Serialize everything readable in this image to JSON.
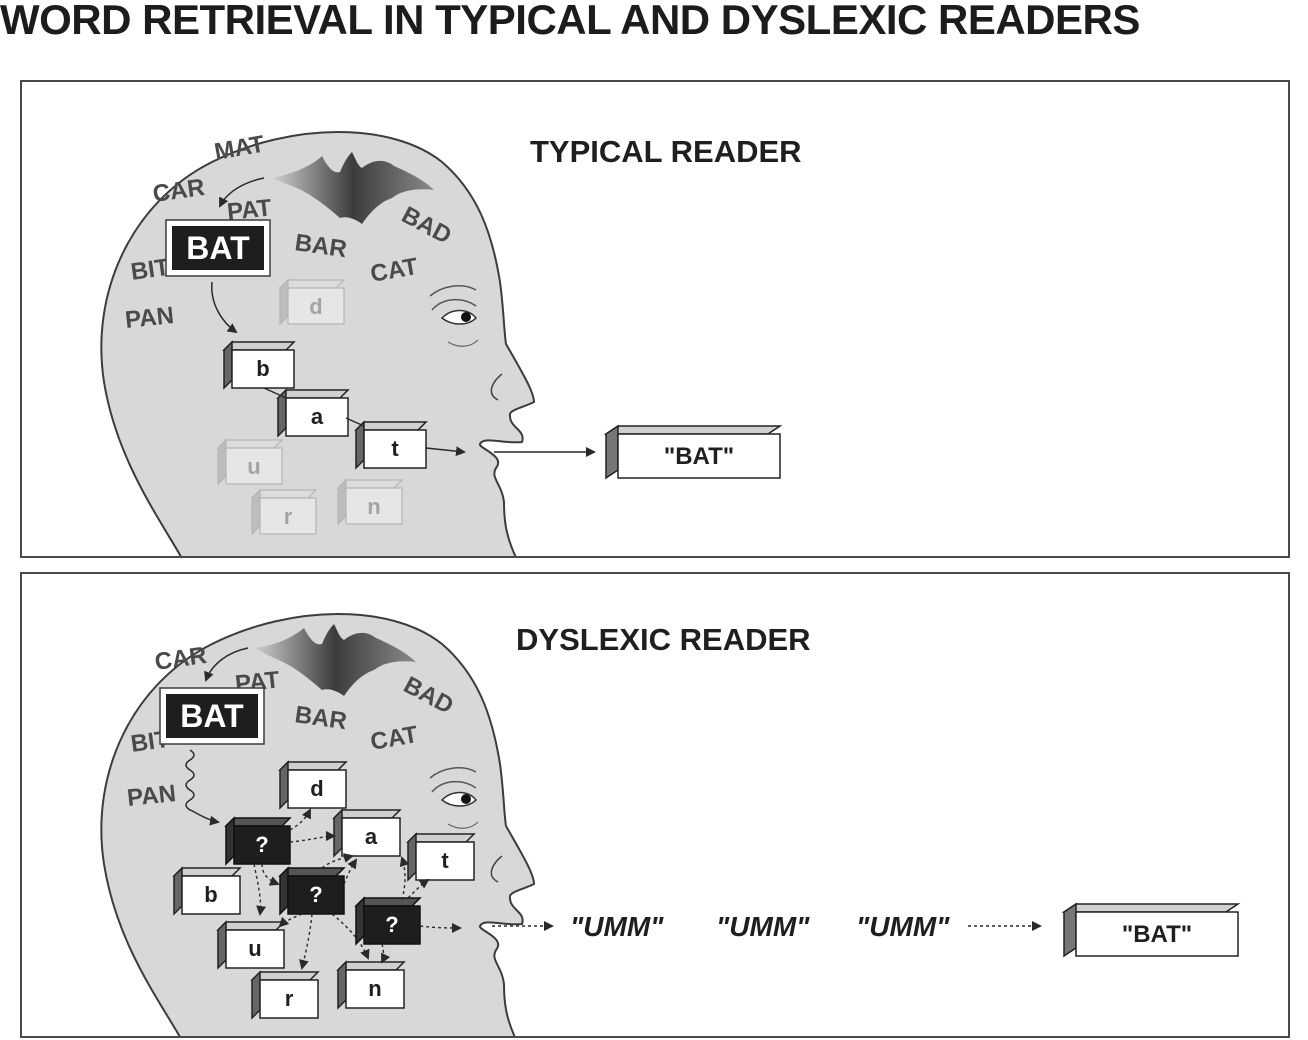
{
  "title": "WORD RETRIEVAL IN TYPICAL AND DYSLEXIC READERS",
  "colors": {
    "head_fill": "#d8d8d8",
    "outline": "#3c3c3c",
    "word_gray": "#4a4a4a",
    "faded_block": "#b8b8b8",
    "dark_block": "#1e1e1e"
  },
  "icons": [
    "head-silhouette",
    "bat-silhouette",
    "letter-block",
    "output-block"
  ],
  "typical": {
    "heading": "TYPICAL READER",
    "words": {
      "mat": "MAT",
      "car": "CAR",
      "pat": "PAT",
      "bad": "BAD",
      "bar": "BAR",
      "cat": "CAT",
      "bit": "BIT",
      "pan": "PAN"
    },
    "target_word": "BAT",
    "sequence_letters": [
      "b",
      "a",
      "t"
    ],
    "distractor_letters": [
      "d",
      "u",
      "r",
      "n"
    ],
    "output": "\"BAT\""
  },
  "dyslexic": {
    "heading": "DYSLEXIC READER",
    "words": {
      "car": "CAR",
      "pat": "PAT",
      "bad": "BAD",
      "bar": "BAR",
      "cat": "CAT",
      "bit": "BIT",
      "pan": "PAN"
    },
    "target_word": "BAT",
    "letters": {
      "d": "d",
      "a": "a",
      "t": "t",
      "b": "b",
      "u": "u",
      "r": "r",
      "n": "n"
    },
    "unknown_blocks": [
      "?",
      "?",
      "?"
    ],
    "hesitations": [
      "\"UMM\"",
      "\"UMM\"",
      "\"UMM\""
    ],
    "output": "\"BAT\""
  }
}
